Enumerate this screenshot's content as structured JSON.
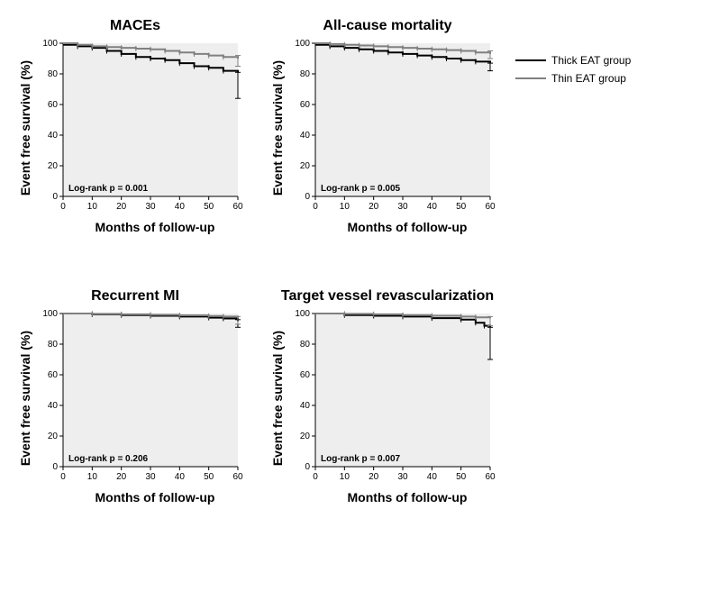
{
  "legend": {
    "items": [
      {
        "label": "Thick EAT group",
        "color": "#000000"
      },
      {
        "label": "Thin EAT group",
        "color": "#808080"
      }
    ]
  },
  "axes_common": {
    "xlim": [
      0,
      60
    ],
    "ylim": [
      0,
      100
    ],
    "xticks": [
      0,
      10,
      20,
      30,
      40,
      50,
      60
    ],
    "yticks": [
      0,
      20,
      40,
      60,
      80,
      100
    ],
    "xlabel": "Months of follow-up",
    "ylabel": "Event free survival (%)",
    "background_color": "#eeeeee",
    "axis_color": "#000000",
    "tick_fontsize": 10,
    "label_fontsize": 14,
    "line_width": 2
  },
  "panels": [
    {
      "title": "MACEs",
      "pvalue_text": "Log-rank p = 0.001",
      "series": [
        {
          "name": "Thick EAT group",
          "color": "#000000",
          "data": [
            [
              0,
              99
            ],
            [
              5,
              98
            ],
            [
              10,
              97
            ],
            [
              15,
              95
            ],
            [
              20,
              93
            ],
            [
              25,
              91
            ],
            [
              30,
              90
            ],
            [
              35,
              89
            ],
            [
              40,
              87
            ],
            [
              45,
              85
            ],
            [
              50,
              84
            ],
            [
              55,
              82
            ],
            [
              60,
              81
            ]
          ],
          "ci_at_end": [
            64,
            81
          ]
        },
        {
          "name": "Thin EAT group",
          "color": "#808080",
          "data": [
            [
              0,
              100
            ],
            [
              5,
              99
            ],
            [
              10,
              98
            ],
            [
              15,
              97.5
            ],
            [
              20,
              97
            ],
            [
              25,
              96.5
            ],
            [
              30,
              96
            ],
            [
              35,
              95
            ],
            [
              40,
              94
            ],
            [
              45,
              93
            ],
            [
              50,
              92
            ],
            [
              55,
              91
            ],
            [
              60,
              90
            ]
          ],
          "ci_at_end": [
            85,
            92
          ]
        }
      ]
    },
    {
      "title": "All-cause mortality",
      "pvalue_text": "Log-rank p = 0.005",
      "series": [
        {
          "name": "Thick EAT group",
          "color": "#000000",
          "data": [
            [
              0,
              99
            ],
            [
              5,
              98
            ],
            [
              10,
              97
            ],
            [
              15,
              96
            ],
            [
              20,
              95
            ],
            [
              25,
              94
            ],
            [
              30,
              93
            ],
            [
              35,
              92
            ],
            [
              40,
              91
            ],
            [
              45,
              90
            ],
            [
              50,
              89
            ],
            [
              55,
              88
            ],
            [
              60,
              87
            ]
          ],
          "ci_at_end": [
            82,
            87
          ]
        },
        {
          "name": "Thin EAT group",
          "color": "#808080",
          "data": [
            [
              0,
              100
            ],
            [
              5,
              99.5
            ],
            [
              10,
              99
            ],
            [
              15,
              98.5
            ],
            [
              20,
              98
            ],
            [
              25,
              97.5
            ],
            [
              30,
              97
            ],
            [
              35,
              96.5
            ],
            [
              40,
              96
            ],
            [
              45,
              95.5
            ],
            [
              50,
              95
            ],
            [
              55,
              94
            ],
            [
              60,
              93
            ]
          ],
          "ci_at_end": [
            90,
            95
          ]
        }
      ]
    },
    {
      "title": "Recurrent MI",
      "pvalue_text": "Log-rank p = 0.206",
      "series": [
        {
          "name": "Thick EAT group",
          "color": "#000000",
          "data": [
            [
              0,
              100
            ],
            [
              10,
              99.5
            ],
            [
              20,
              99
            ],
            [
              30,
              98.5
            ],
            [
              40,
              98
            ],
            [
              50,
              97.3
            ],
            [
              55,
              96.8
            ],
            [
              60,
              95
            ]
          ],
          "ci_at_end": [
            91,
            96
          ]
        },
        {
          "name": "Thin EAT group",
          "color": "#808080",
          "data": [
            [
              0,
              100
            ],
            [
              10,
              99.8
            ],
            [
              20,
              99.5
            ],
            [
              30,
              99.2
            ],
            [
              40,
              98.8
            ],
            [
              50,
              98.4
            ],
            [
              55,
              98
            ],
            [
              60,
              97
            ]
          ],
          "ci_at_end": [
            93,
            98
          ]
        }
      ]
    },
    {
      "title": "Target vessel revascularization",
      "pvalue_text": "Log-rank p = 0.007",
      "series": [
        {
          "name": "Thick EAT group",
          "color": "#000000",
          "data": [
            [
              0,
              100
            ],
            [
              10,
              99
            ],
            [
              20,
              98.5
            ],
            [
              30,
              98
            ],
            [
              40,
              97
            ],
            [
              50,
              96
            ],
            [
              55,
              94
            ],
            [
              58,
              92
            ],
            [
              60,
              91
            ]
          ],
          "ci_at_end": [
            70,
            91
          ]
        },
        {
          "name": "Thin EAT group",
          "color": "#808080",
          "data": [
            [
              0,
              100
            ],
            [
              10,
              99.8
            ],
            [
              20,
              99.5
            ],
            [
              30,
              99
            ],
            [
              40,
              98.5
            ],
            [
              50,
              98
            ],
            [
              55,
              97.5
            ],
            [
              60,
              97
            ]
          ],
          "ci_at_end": [
            92,
            98
          ]
        }
      ]
    }
  ]
}
